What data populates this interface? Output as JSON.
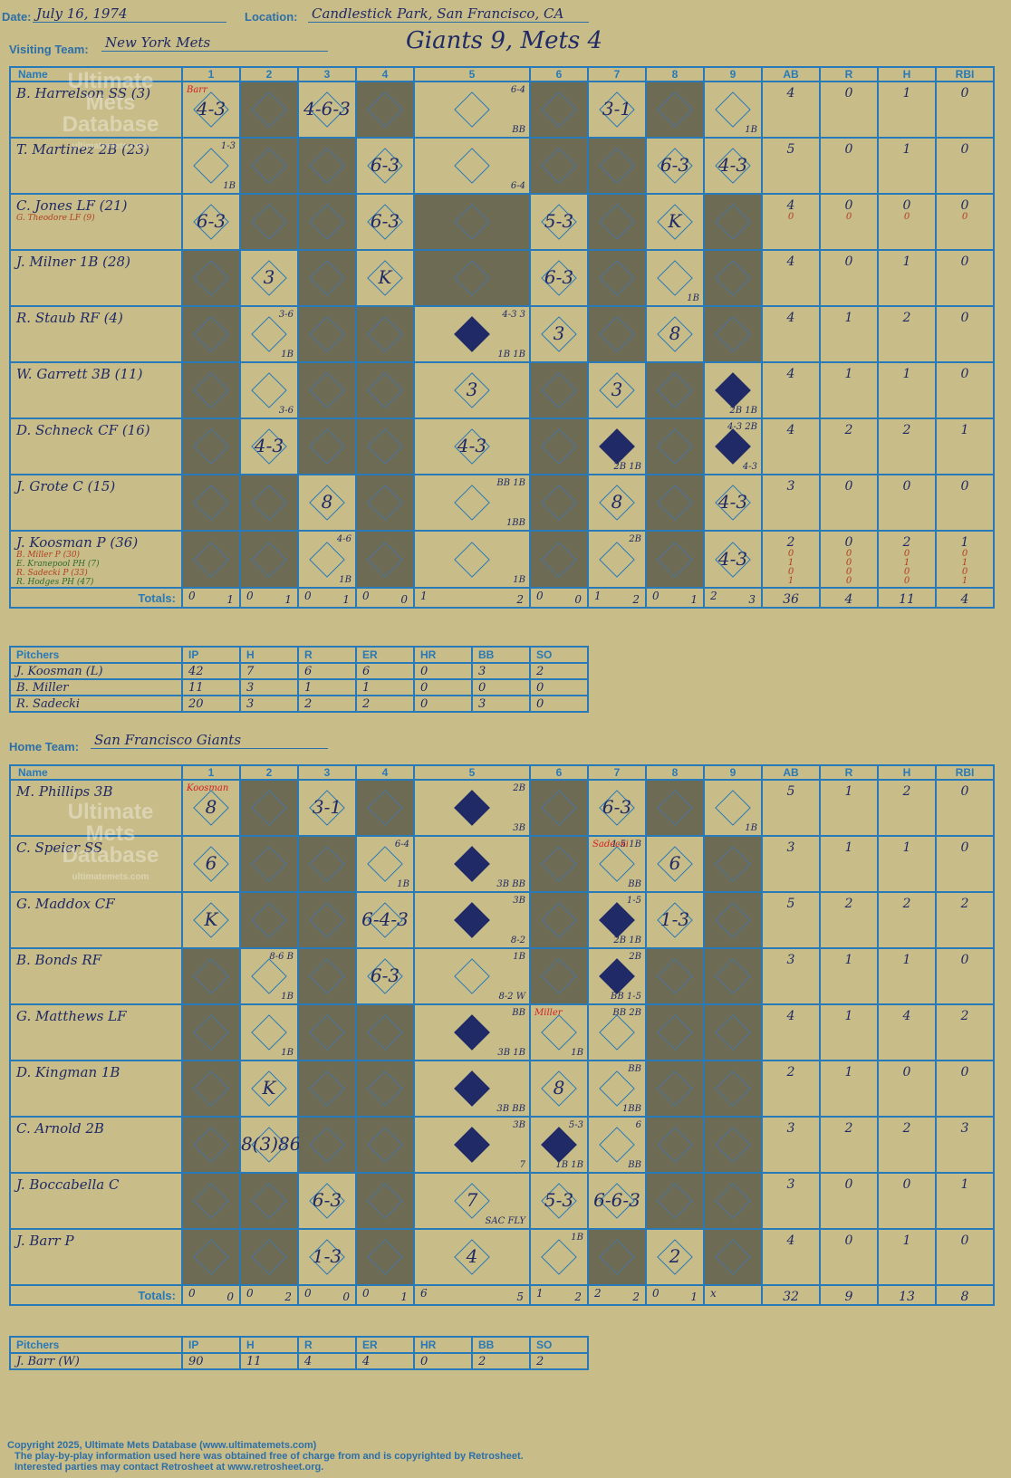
{
  "header": {
    "date_label": "Date:",
    "date": "July 16, 1974",
    "location_label": "Location:",
    "location": "Candlestick Park, San Francisco, CA",
    "visiting_label": "Visiting Team:",
    "visiting_team": "New York Mets",
    "result": "Giants 9, Mets 4",
    "home_label": "Home Team:",
    "home_team": "San Francisco Giants"
  },
  "watermark": {
    "line1": "Ultimate",
    "line2": "Mets",
    "line3": "Database",
    "url": "ultimatemets.com"
  },
  "columns": [
    "Name",
    "1",
    "2",
    "3",
    "4",
    "5",
    "6",
    "7",
    "8",
    "9",
    "AB",
    "R",
    "H",
    "RBI"
  ],
  "totals_label": "Totals:",
  "rh_labels": {
    "r": "R",
    "h": "H"
  },
  "visitors": {
    "batters": [
      {
        "name": "B. Harrelson SS (3)",
        "subs": [],
        "stats": [
          "4",
          "0",
          "1",
          "0"
        ],
        "substats": []
      },
      {
        "name": "T. Martinez 2B (23)",
        "subs": [],
        "stats": [
          "5",
          "0",
          "1",
          "0"
        ],
        "substats": []
      },
      {
        "name": "C. Jones LF (21)",
        "subs": [
          "G. Theodore LF (9)"
        ],
        "stats": [
          "4",
          "0",
          "0",
          "0"
        ],
        "substats": [
          [
            "0",
            "0",
            "0",
            "0"
          ]
        ]
      },
      {
        "name": "J. Milner 1B (28)",
        "subs": [],
        "stats": [
          "4",
          "0",
          "1",
          "0"
        ],
        "substats": []
      },
      {
        "name": "R. Staub RF (4)",
        "subs": [],
        "stats": [
          "4",
          "1",
          "2",
          "0"
        ],
        "substats": []
      },
      {
        "name": "W. Garrett 3B (11)",
        "subs": [],
        "stats": [
          "4",
          "1",
          "1",
          "0"
        ],
        "substats": []
      },
      {
        "name": "D. Schneck CF (16)",
        "subs": [],
        "stats": [
          "4",
          "2",
          "2",
          "1"
        ],
        "substats": []
      },
      {
        "name": "J. Grote C (15)",
        "subs": [],
        "stats": [
          "3",
          "0",
          "0",
          "0"
        ],
        "substats": []
      },
      {
        "name": "J. Koosman P (36)",
        "subs": [
          "B. Miller P (30)",
          "E. Kranepool PH (7)",
          "R. Sadecki P (33)",
          "R. Hodges PH (47)"
        ],
        "stats": [
          "2",
          "0",
          "2",
          "1"
        ],
        "substats": [
          [
            "0",
            "0",
            "0",
            "0"
          ],
          [
            "1",
            "0",
            "1",
            "1"
          ],
          [
            "0",
            "0",
            "0",
            "0"
          ],
          [
            "1",
            "0",
            "0",
            "1"
          ]
        ]
      }
    ],
    "cells": [
      [
        {
          "t": "4-3",
          "n": "Barr"
        },
        {
          "g": 1
        },
        {
          "t": "4-6-3"
        },
        {
          "g": 1
        },
        {
          "t": "",
          "nt": "6-4",
          "nb": "BB"
        },
        {
          "g": 1
        },
        {
          "t": "3-1"
        },
        {
          "g": 1
        },
        {
          "t": "",
          "nb": "1B"
        }
      ],
      [
        {
          "t": "",
          "nt": "1-3",
          "nb": "1B"
        },
        {
          "g": 1
        },
        {
          "g": 1
        },
        {
          "t": "6-3"
        },
        {
          "t": "",
          "nb": "6-4"
        },
        {
          "g": 1
        },
        {
          "g": 1
        },
        {
          "t": "6-3"
        },
        {
          "t": "4-3"
        }
      ],
      [
        {
          "t": "6-3"
        },
        {
          "g": 1
        },
        {
          "g": 1
        },
        {
          "t": "6-3"
        },
        {
          "g": 1
        },
        {
          "t": "5-3"
        },
        {
          "g": 1
        },
        {
          "t": "K"
        },
        {
          "g": 1
        }
      ],
      [
        {
          "g": 1
        },
        {
          "t": "3"
        },
        {
          "g": 1
        },
        {
          "t": "K"
        },
        {
          "g": 1
        },
        {
          "t": "6-3"
        },
        {
          "g": 1
        },
        {
          "t": "",
          "nb": "1B"
        },
        {
          "g": 1
        }
      ],
      [
        {
          "g": 1
        },
        {
          "t": "",
          "nt": "3-6",
          "nb": "1B"
        },
        {
          "g": 1
        },
        {
          "g": 1
        },
        {
          "run": 1,
          "nt": "4-3 3",
          "nb": "1B 1B"
        },
        {
          "t": "3"
        },
        {
          "g": 1
        },
        {
          "t": "8"
        },
        {
          "g": 1
        }
      ],
      [
        {
          "g": 1
        },
        {
          "t": "",
          "nb": "3-6"
        },
        {
          "g": 1
        },
        {
          "g": 1
        },
        {
          "t": "3"
        },
        {
          "g": 1
        },
        {
          "t": "3"
        },
        {
          "g": 1
        },
        {
          "run": 1,
          "nb": "2B 1B"
        }
      ],
      [
        {
          "g": 1
        },
        {
          "t": "4-3"
        },
        {
          "g": 1
        },
        {
          "g": 1
        },
        {
          "t": "4-3"
        },
        {
          "g": 1
        },
        {
          "run": 1,
          "nb": "2B 1B"
        },
        {
          "g": 1
        },
        {
          "run": 1,
          "nt": "4-3 2B",
          "nb": "4-3"
        }
      ],
      [
        {
          "g": 1
        },
        {
          "g": 1
        },
        {
          "t": "8"
        },
        {
          "g": 1
        },
        {
          "t": "",
          "nt": "BB 1B",
          "nb": "1BB"
        },
        {
          "g": 1
        },
        {
          "t": "8"
        },
        {
          "g": 1
        },
        {
          "t": "4-3"
        }
      ],
      [
        {
          "g": 1
        },
        {
          "g": 1
        },
        {
          "t": "",
          "nt": "4-6",
          "nb": "1B"
        },
        {
          "g": 1
        },
        {
          "t": "",
          "nb": "1B"
        },
        {
          "g": 1
        },
        {
          "t": "",
          "nt": "2B"
        },
        {
          "g": 1
        },
        {
          "t": "4-3"
        }
      ]
    ],
    "totals": [
      [
        "0",
        "1"
      ],
      [
        "0",
        "1"
      ],
      [
        "0",
        "1"
      ],
      [
        "0",
        "0"
      ],
      [
        "1",
        "2"
      ],
      [
        "0",
        "0"
      ],
      [
        "1",
        "2"
      ],
      [
        "0",
        "1"
      ],
      [
        "2",
        "3"
      ]
    ],
    "totals_stats": [
      "36",
      "4",
      "11",
      "4"
    ],
    "pitchers": [
      {
        "name": "J. Koosman (L)",
        "ip": "42",
        "h": "7",
        "r": "6",
        "er": "6",
        "hr": "0",
        "bb": "3",
        "so": "2"
      },
      {
        "name": "B. Miller",
        "ip": "11",
        "h": "3",
        "r": "1",
        "er": "1",
        "hr": "0",
        "bb": "0",
        "so": "0"
      },
      {
        "name": "R. Sadecki",
        "ip": "20",
        "h": "3",
        "r": "2",
        "er": "2",
        "hr": "0",
        "bb": "3",
        "so": "0"
      }
    ]
  },
  "home": {
    "batters": [
      {
        "name": "M. Phillips 3B",
        "subs": [],
        "stats": [
          "5",
          "1",
          "2",
          "0"
        ]
      },
      {
        "name": "C. Speier SS",
        "subs": [],
        "stats": [
          "3",
          "1",
          "1",
          "0"
        ]
      },
      {
        "name": "G. Maddox CF",
        "subs": [],
        "stats": [
          "5",
          "2",
          "2",
          "2"
        ]
      },
      {
        "name": "B. Bonds RF",
        "subs": [],
        "stats": [
          "3",
          "1",
          "1",
          "0"
        ]
      },
      {
        "name": "G. Matthews LF",
        "subs": [],
        "stats": [
          "4",
          "1",
          "4",
          "2"
        ]
      },
      {
        "name": "D. Kingman 1B",
        "subs": [],
        "stats": [
          "2",
          "1",
          "0",
          "0"
        ]
      },
      {
        "name": "C. Arnold 2B",
        "subs": [],
        "stats": [
          "3",
          "2",
          "2",
          "3"
        ]
      },
      {
        "name": "J. Boccabella C",
        "subs": [],
        "stats": [
          "3",
          "0",
          "0",
          "1"
        ]
      },
      {
        "name": "J. Barr P",
        "subs": [],
        "stats": [
          "4",
          "0",
          "1",
          "0"
        ]
      }
    ],
    "cells": [
      [
        {
          "t": "8",
          "n": "Koosman"
        },
        {
          "g": 1
        },
        {
          "t": "3-1"
        },
        {
          "g": 1
        },
        {
          "run": 1,
          "nt": "2B",
          "nb": "3B"
        },
        {
          "g": 1
        },
        {
          "t": "6-3"
        },
        {
          "g": 1
        },
        {
          "t": "",
          "nb": "1B"
        }
      ],
      [
        {
          "t": "6"
        },
        {
          "g": 1
        },
        {
          "g": 1
        },
        {
          "t": "",
          "nt": "6-4",
          "nb": "1B"
        },
        {
          "run": 1,
          "nb": "3B BB"
        },
        {
          "g": 1
        },
        {
          "t": "",
          "n": "Sadecki",
          "nt": "1-5 1B",
          "nb": "BB"
        },
        {
          "t": "6"
        },
        {
          "g": 1
        }
      ],
      [
        {
          "t": "K"
        },
        {
          "g": 1
        },
        {
          "g": 1
        },
        {
          "t": "6-4-3"
        },
        {
          "run": 1,
          "nt": "3B",
          "nb": "8-2"
        },
        {
          "g": 1
        },
        {
          "run": 1,
          "nt": "1-5",
          "nb": "2B 1B"
        },
        {
          "t": "1-3"
        },
        {
          "g": 1
        }
      ],
      [
        {
          "g": 1
        },
        {
          "t": "",
          "nt": "8-6 B",
          "nb": "1B"
        },
        {
          "g": 1
        },
        {
          "t": "6-3"
        },
        {
          "t": "",
          "nt": "1B",
          "nb": "8-2 W"
        },
        {
          "g": 1
        },
        {
          "run": 1,
          "nt": "2B",
          "nb": "BB 1-5"
        },
        {
          "g": 1
        },
        {
          "g": 1
        }
      ],
      [
        {
          "g": 1
        },
        {
          "t": "",
          "nb": "1B"
        },
        {
          "g": 1
        },
        {
          "g": 1
        },
        {
          "run": 1,
          "nt": "BB",
          "nb": "3B 1B"
        },
        {
          "t": "",
          "n": "Miller",
          "nb": "1B"
        },
        {
          "t": "",
          "nt": "BB 2B"
        },
        {
          "g": 1
        },
        {
          "g": 1
        }
      ],
      [
        {
          "g": 1
        },
        {
          "t": "K"
        },
        {
          "g": 1
        },
        {
          "g": 1
        },
        {
          "run": 1,
          "nb": "3B BB"
        },
        {
          "t": "8"
        },
        {
          "t": "",
          "nt": "BB",
          "nb": "1BB"
        },
        {
          "g": 1
        },
        {
          "g": 1
        }
      ],
      [
        {
          "g": 1
        },
        {
          "t": "8(3)86"
        },
        {
          "g": 1
        },
        {
          "g": 1
        },
        {
          "run": 1,
          "nt": "3B",
          "nb": "7"
        },
        {
          "run": 1,
          "nt": "5-3",
          "nb": "1B 1B"
        },
        {
          "t": "",
          "nt": "6",
          "nb": "BB"
        },
        {
          "g": 1
        },
        {
          "g": 1
        }
      ],
      [
        {
          "g": 1
        },
        {
          "g": 1
        },
        {
          "t": "6-3"
        },
        {
          "g": 1
        },
        {
          "t": "7",
          "nb": "SAC FLY"
        },
        {
          "t": "5-3"
        },
        {
          "t": "6-6-3"
        },
        {
          "g": 1
        },
        {
          "g": 1
        }
      ],
      [
        {
          "g": 1
        },
        {
          "g": 1
        },
        {
          "t": "1-3"
        },
        {
          "g": 1
        },
        {
          "t": "4"
        },
        {
          "t": "",
          "nt": "1B"
        },
        {
          "g": 1
        },
        {
          "t": "2"
        },
        {
          "g": 1
        }
      ]
    ],
    "totals": [
      [
        "0",
        "0"
      ],
      [
        "0",
        "2"
      ],
      [
        "0",
        "0"
      ],
      [
        "0",
        "1"
      ],
      [
        "6",
        "5"
      ],
      [
        "1",
        "2"
      ],
      [
        "2",
        "2"
      ],
      [
        "0",
        "1"
      ],
      [
        "x",
        ""
      ]
    ],
    "totals_stats": [
      "32",
      "9",
      "13",
      "8"
    ],
    "pitchers": [
      {
        "name": "J. Barr (W)",
        "ip": "90",
        "h": "11",
        "r": "4",
        "er": "4",
        "hr": "0",
        "bb": "2",
        "so": "2"
      }
    ]
  },
  "pitcher_columns": [
    "Pitchers",
    "IP",
    "H",
    "R",
    "ER",
    "HR",
    "BB",
    "SO"
  ],
  "footer": {
    "line1": "Copyright 2025, Ultimate Mets Database (www.ultimatemets.com)",
    "line2": "The play-by-play information used here was obtained free of charge from and is copyrighted by Retrosheet.",
    "line3": "Interested parties may contact Retrosheet at www.retrosheet.org."
  }
}
